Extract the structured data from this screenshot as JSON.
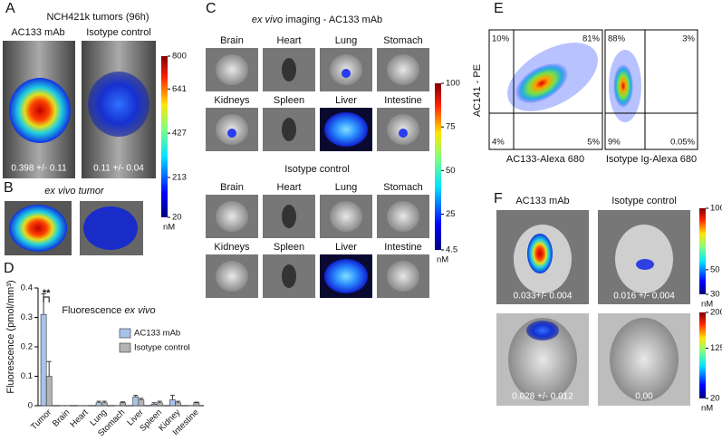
{
  "panel_a": {
    "label": "A",
    "title": "NCH421k tumors (96h)",
    "left_title": "AC133 mAb",
    "right_title": "Isotype control",
    "left_value": "0.398 +/- 0.11",
    "right_value": "0.11 +/- 0.04",
    "colorbar": [
      800,
      641,
      427,
      213,
      20
    ],
    "unit": "nM"
  },
  "panel_b": {
    "label": "B",
    "title": "ex vivo tumor"
  },
  "panel_c": {
    "label": "C",
    "title_italic": "ex vivo",
    "title_rest": "imaging - AC133 mAb",
    "subtitle": "Isotype control",
    "ab_labels": [
      "Brain",
      "Heart",
      "Lung",
      "Stomach",
      "Kidneys",
      "Spleen",
      "Liver",
      "Intestine"
    ],
    "iso_labels": [
      "Brain",
      "Heart",
      "Lung",
      "Stomach",
      "Kidneys",
      "Spleen",
      "Liver",
      "Intestine"
    ],
    "colorbar": [
      100,
      75,
      50,
      25,
      4.5
    ],
    "unit": "nM"
  },
  "panel_e": {
    "label": "E",
    "y_label": "AC141 - PE",
    "left_x_label": "AC133-Alexa 680",
    "right_x_label": "Isotype Ig-Alexa 680",
    "left_quadrants": [
      "10%",
      "81%",
      "4%",
      "5%"
    ],
    "right_quadrants": [
      "88%",
      "3%",
      "9%",
      "0.05%"
    ]
  },
  "panel_f": {
    "label": "F",
    "left_title": "AC133 mAb",
    "right_title": "Isotype control",
    "top_values": [
      "0.033+/- 0.004",
      "0.016 +/- 0.004"
    ],
    "bottom_values": [
      "0.028 +/- 0.012",
      "0,00"
    ],
    "top_colorbar": [
      100,
      50,
      30
    ],
    "bottom_colorbar": [
      200,
      125,
      20
    ],
    "unit": "nM"
  },
  "chart_data": {
    "type": "bar",
    "label": "D",
    "title_rest": "Fluorescence",
    "title_italic": "ex vivo",
    "y_label": "Fluorescence (pmol/mm³)",
    "annotation": "**",
    "categories": [
      "Tumor",
      "Brain",
      "Heart",
      "Lung",
      "Stomach",
      "Liver",
      "Spleen",
      "Kidney",
      "Intestine"
    ],
    "series": [
      {
        "name": "AC133 mAb",
        "color": "#a8c3ea",
        "values": [
          0.31,
          0,
          0,
          0.01,
          0,
          0.03,
          0.005,
          0.02,
          0
        ],
        "errors": [
          0.07,
          0,
          0,
          0.005,
          0,
          0.005,
          0.005,
          0.015,
          0
        ]
      },
      {
        "name": "Isotype control",
        "color": "#b3b3b3",
        "values": [
          0.1,
          0,
          0,
          0.01,
          0.01,
          0.02,
          0.01,
          0.01,
          0.01
        ],
        "errors": [
          0.05,
          0,
          0,
          0.005,
          0.003,
          0.005,
          0.005,
          0.005,
          0.002
        ]
      }
    ],
    "ylim": [
      0,
      0.4
    ],
    "yticks": [
      0,
      0.1,
      0.2,
      0.3,
      0.4
    ]
  }
}
